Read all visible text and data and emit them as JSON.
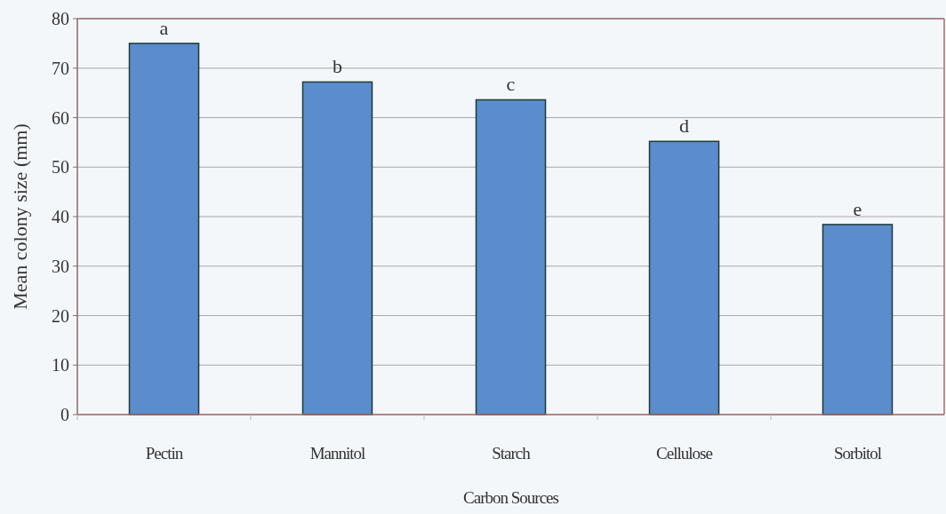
{
  "chart_data": {
    "type": "bar",
    "xlabel": "Carbon Sources",
    "ylabel": "Mean colony size (mm)",
    "categories": [
      "Pectin",
      "Mannitol",
      "Starch",
      "Cellulose",
      "Sorbitol"
    ],
    "values": [
      75,
      67.2,
      63.6,
      55.2,
      38.4
    ],
    "color": "#5b8ccc",
    "ylim": [
      0,
      80
    ],
    "yticks": [
      0,
      10,
      20,
      30,
      40,
      50,
      60,
      70,
      80
    ],
    "grid": "y",
    "annotations": [
      {
        "text": "a",
        "x": "Pectin",
        "y": 75
      },
      {
        "text": "b",
        "x": "Mannitol",
        "y": 67.2
      },
      {
        "text": "c",
        "x": "Starch",
        "y": 63.6
      },
      {
        "text": "d",
        "x": "Cellulose",
        "y": 55.2
      },
      {
        "text": "e",
        "x": "Sorbitol",
        "y": 38.4
      }
    ]
  }
}
